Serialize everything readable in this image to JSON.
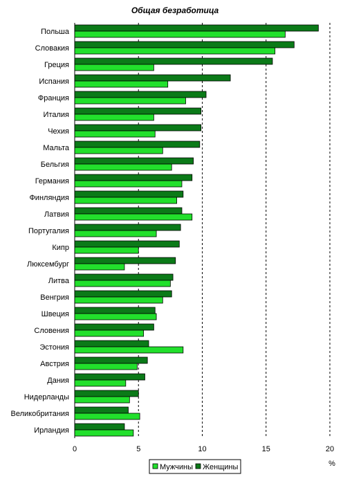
{
  "chart_data": {
    "type": "bar",
    "orientation": "horizontal",
    "title": "Общая безработица",
    "xlabel": "%",
    "ylabel": "",
    "xlim": [
      0,
      20
    ],
    "xticks": [
      0,
      5,
      10,
      15,
      20
    ],
    "grid": "vertical dashed",
    "legend_position": "bottom",
    "categories": [
      "Польша",
      "Словакия",
      "Греция",
      "Испания",
      "Франция",
      "Италия",
      "Чехия",
      "Мальта",
      "Бельгия",
      "Германия",
      "Финляндия",
      "Латвия",
      "Португалия",
      "Кипр",
      "Люксембург",
      "Литва",
      "Венгрия",
      "Швеция",
      "Словения",
      "Эстония",
      "Австрия",
      "Дания",
      "Нидерланды",
      "Великобритания",
      "Ирландия"
    ],
    "series": [
      {
        "name": "Женщины",
        "color": "#0b7a18",
        "values": [
          19.1,
          17.2,
          15.5,
          12.2,
          10.3,
          9.9,
          9.9,
          9.8,
          9.3,
          9.2,
          8.5,
          8.4,
          8.3,
          8.2,
          7.9,
          7.7,
          7.6,
          6.3,
          6.2,
          5.8,
          5.7,
          5.5,
          5.0,
          4.2,
          3.9
        ]
      },
      {
        "name": "Мужчины",
        "color": "#22e02c",
        "values": [
          16.5,
          15.7,
          6.2,
          7.3,
          8.7,
          6.2,
          6.3,
          6.9,
          7.6,
          8.4,
          8.0,
          9.2,
          6.4,
          5.0,
          3.9,
          7.5,
          6.9,
          6.4,
          5.4,
          8.5,
          4.9,
          4.0,
          4.3,
          5.1,
          4.6
        ]
      }
    ]
  }
}
